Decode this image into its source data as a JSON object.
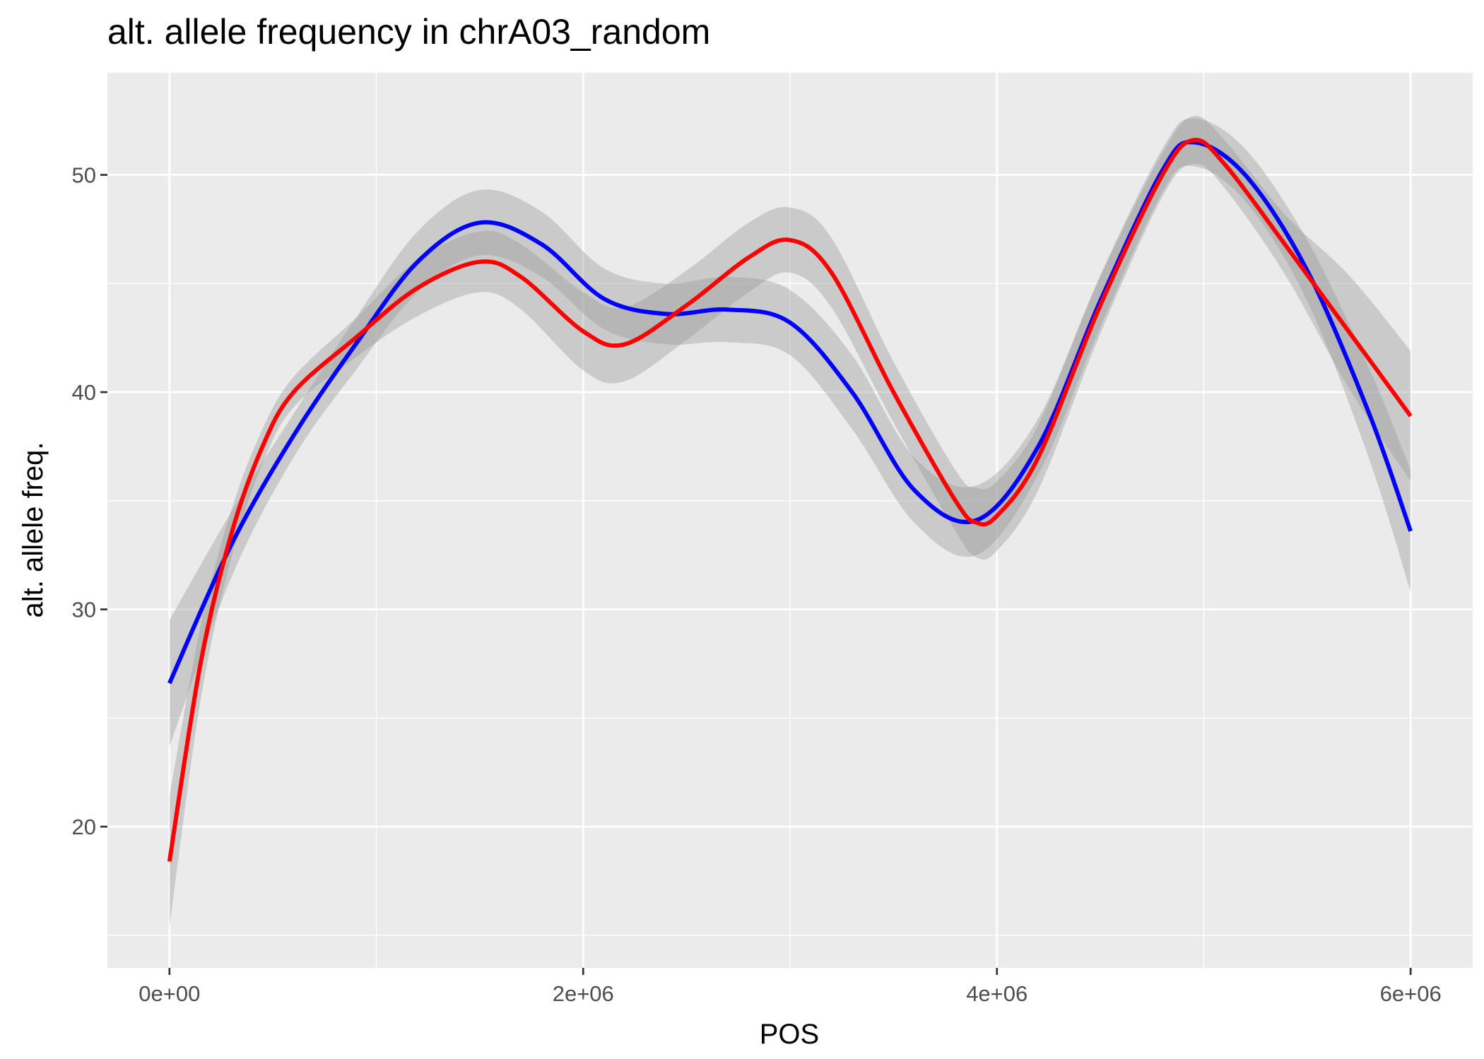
{
  "chart_data": {
    "type": "line",
    "title": "alt. allele frequency in chrA03_random",
    "xlabel": "POS",
    "ylabel": "alt. allele freq.",
    "xlim": [
      -300000,
      6300000
    ],
    "ylim": [
      13.5,
      54.7
    ],
    "x_ticks": [
      0,
      2000000,
      4000000,
      6000000
    ],
    "x_tick_labels": [
      "0e+00",
      "2e+06",
      "4e+06",
      "6e+06"
    ],
    "y_ticks": [
      20,
      30,
      40,
      50
    ],
    "y_tick_labels": [
      "20",
      "30",
      "40",
      "50"
    ],
    "grid": true,
    "legend": "none",
    "colors": {
      "panel": "#ebebeb",
      "grid": "#ffffff",
      "band": "#999999",
      "tick": "#333333"
    },
    "series": [
      {
        "color": "#0000ff",
        "x": [
          0,
          300000,
          600000,
          900000,
          1200000,
          1500000,
          1800000,
          2100000,
          2400000,
          2700000,
          3000000,
          3300000,
          3600000,
          3900000,
          4200000,
          4500000,
          4800000,
          4950000,
          5200000,
          5500000,
          5800000,
          6000000
        ],
        "y": [
          26.6,
          33.0,
          38.0,
          42.2,
          46.0,
          47.8,
          46.8,
          44.3,
          43.6,
          43.8,
          43.2,
          40.0,
          35.5,
          34.1,
          37.5,
          44.2,
          50.2,
          51.5,
          50.0,
          45.6,
          39.0,
          33.6
        ],
        "lower": [
          23.7,
          31.5,
          37.0,
          41.0,
          44.6,
          46.3,
          45.3,
          42.9,
          42.2,
          42.3,
          41.7,
          38.3,
          34.0,
          32.5,
          36.2,
          43.0,
          49.2,
          50.4,
          48.8,
          44.2,
          36.9,
          30.8
        ],
        "upper": [
          29.5,
          34.5,
          39.0,
          43.4,
          47.4,
          49.3,
          48.3,
          45.7,
          45.0,
          45.3,
          44.7,
          41.7,
          37.0,
          35.7,
          38.8,
          45.4,
          51.2,
          52.6,
          51.2,
          47.0,
          41.1,
          36.4
        ]
      },
      {
        "color": "#ff0000",
        "x": [
          0,
          150000,
          300000,
          450000,
          600000,
          900000,
          1200000,
          1500000,
          1700000,
          2000000,
          2200000,
          2500000,
          2800000,
          3000000,
          3200000,
          3500000,
          3800000,
          3900000,
          4000000,
          4200000,
          4500000,
          4800000,
          4950000,
          5100000,
          5400000,
          5700000,
          6000000
        ],
        "y": [
          18.4,
          27.5,
          33.5,
          37.5,
          40.0,
          42.5,
          44.8,
          46.0,
          45.3,
          42.8,
          42.2,
          44.0,
          46.2,
          47.0,
          45.5,
          40.0,
          35.0,
          34.0,
          34.3,
          37.0,
          44.0,
          50.0,
          51.6,
          50.5,
          46.7,
          42.8,
          38.9
        ],
        "lower": [
          15.4,
          25.8,
          32.4,
          36.7,
          39.3,
          41.6,
          43.5,
          44.6,
          43.8,
          41.0,
          40.5,
          42.4,
          44.6,
          45.5,
          43.9,
          38.6,
          33.6,
          32.4,
          32.7,
          35.5,
          42.7,
          49.0,
          50.5,
          49.4,
          45.3,
          40.2,
          35.9
        ],
        "upper": [
          21.4,
          29.2,
          34.6,
          38.3,
          40.7,
          43.4,
          46.1,
          47.4,
          46.8,
          44.6,
          43.9,
          45.6,
          47.8,
          48.5,
          47.1,
          41.4,
          36.4,
          35.6,
          35.9,
          38.5,
          45.3,
          51.0,
          52.7,
          51.6,
          48.1,
          45.4,
          41.9
        ]
      }
    ]
  }
}
